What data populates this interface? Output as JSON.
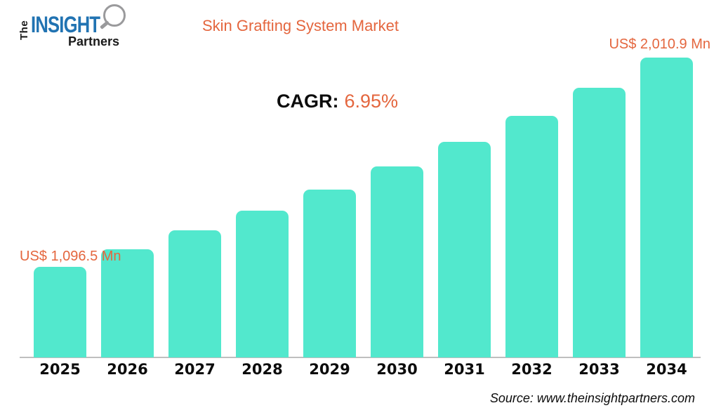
{
  "logo": {
    "the": "The",
    "insight": "INSIGHT",
    "partners": "Partners"
  },
  "header": {
    "title": "Skin Grafting System Market"
  },
  "cagr": {
    "label": "CAGR:",
    "value": "6.95%"
  },
  "annotations": {
    "first_bar_label": "US$ 1,096.5 Mn",
    "last_bar_label": "US$ 2,010.9 Mn"
  },
  "footer": {
    "source": "Source: www.theinsightpartners.com"
  },
  "colors": {
    "bar_teal": "#52E8CD",
    "accent_orange": "#E4663E",
    "logo_blue": "#2173B2",
    "axis_line_gray": "#BFBFBF",
    "text_dark": "#0C0C0C"
  },
  "chart_data": {
    "type": "bar",
    "title": "Skin Grafting System Market",
    "categories": [
      "2025",
      "2026",
      "2027",
      "2028",
      "2029",
      "2030",
      "2031",
      "2032",
      "2033",
      "2034"
    ],
    "values": [
      1096.5,
      1172.7,
      1254.2,
      1341.4,
      1434.6,
      1534.3,
      1641.0,
      1755.0,
      1877.0,
      2010.9
    ],
    "value_unit": "US$ Mn",
    "labeled_values": {
      "2025": "US$ 1,096.5 Mn",
      "2034": "US$ 2,010.9 Mn"
    },
    "cagr_percent": 6.95,
    "xlabel": "",
    "ylabel": "",
    "ylim": [
      700,
      2050
    ],
    "grid": false,
    "legend": "none"
  }
}
